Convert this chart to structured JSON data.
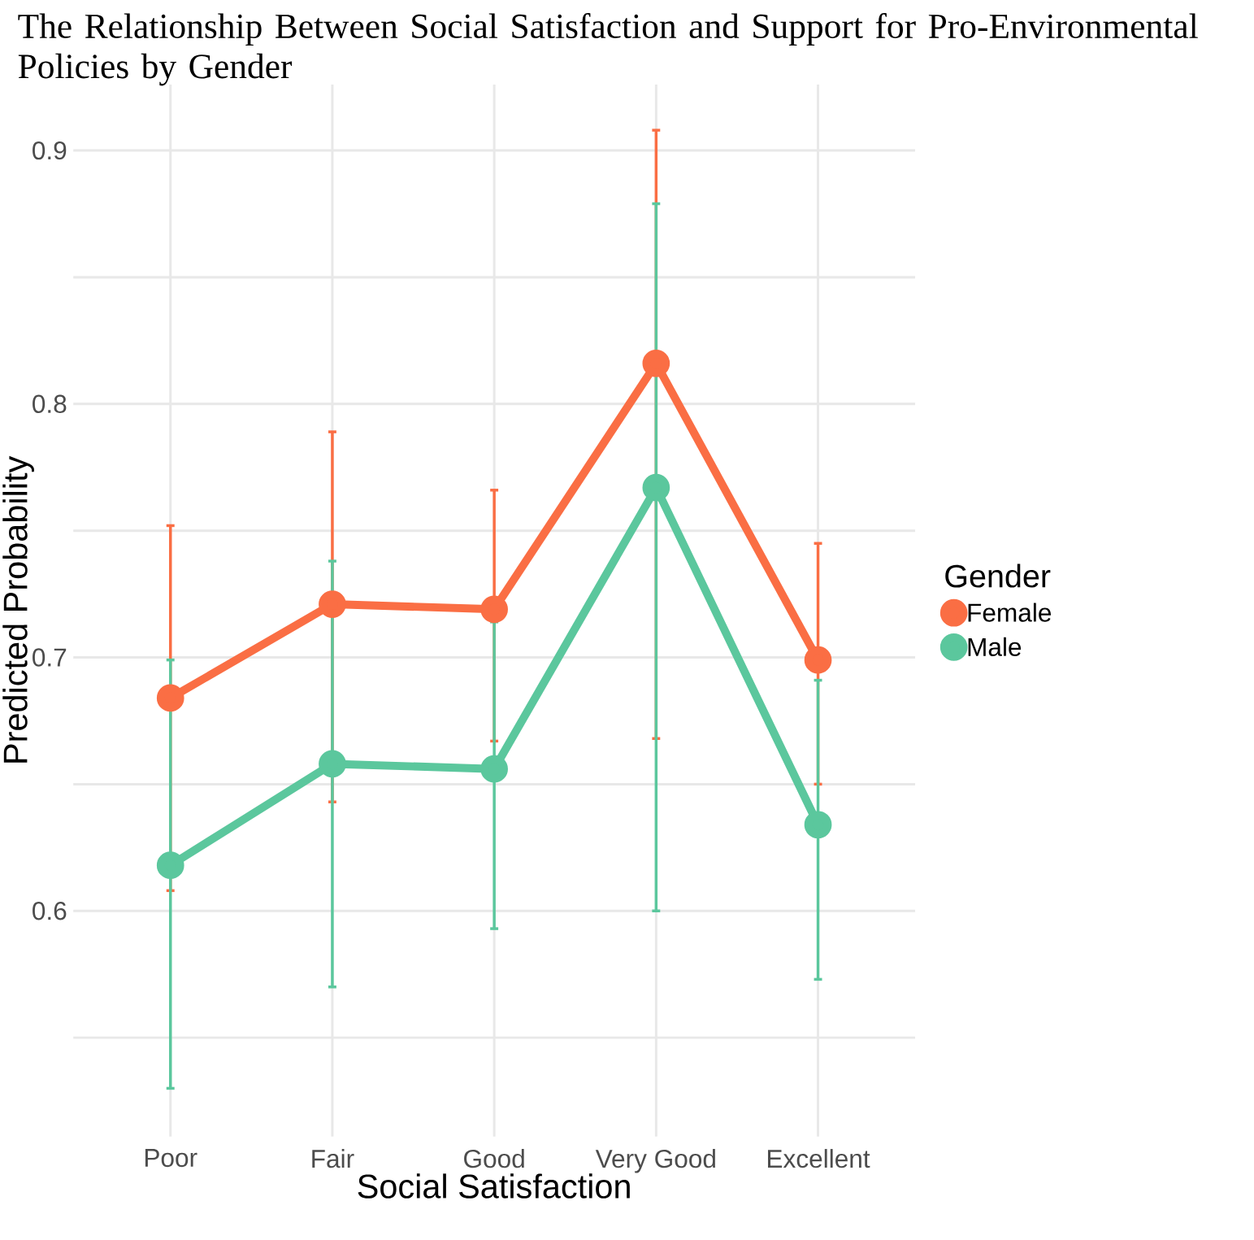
{
  "chart_data": {
    "type": "line",
    "title": "The Relationship Between Social Satisfaction and Support for Pro-Environmental Policies by Gender",
    "xlabel": "Social Satisfaction",
    "ylabel": "Predicted Probability",
    "legend_title": "Gender",
    "categories": [
      "Poor",
      "Fair",
      "Good",
      "Very Good",
      "Excellent"
    ],
    "series": [
      {
        "name": "Female",
        "color": "#fa6e44",
        "values": [
          0.684,
          0.721,
          0.719,
          0.816,
          0.699
        ],
        "errors": [
          [
            0.608,
            0.752
          ],
          [
            0.643,
            0.789
          ],
          [
            0.667,
            0.766
          ],
          [
            0.668,
            0.908
          ],
          [
            0.65,
            0.745
          ]
        ]
      },
      {
        "name": "Male",
        "color": "#5bc79d",
        "values": [
          0.618,
          0.658,
          0.656,
          0.767,
          0.634
        ],
        "errors": [
          [
            0.53,
            0.699
          ],
          [
            0.57,
            0.738
          ],
          [
            0.593,
            0.714
          ],
          [
            0.6,
            0.879
          ],
          [
            0.573,
            0.691
          ]
        ]
      }
    ],
    "ylim": [
      0.511,
      0.926
    ],
    "yticks": [
      {
        "value": 0.55,
        "label": null
      },
      0.6,
      {
        "value": 0.65,
        "label": null
      },
      0.7,
      {
        "value": 0.75,
        "label": null
      },
      0.8,
      {
        "value": 0.85,
        "label": null
      },
      0.9
    ],
    "grid": true,
    "legend": "right",
    "marker": "circle",
    "line_style": "solid"
  }
}
